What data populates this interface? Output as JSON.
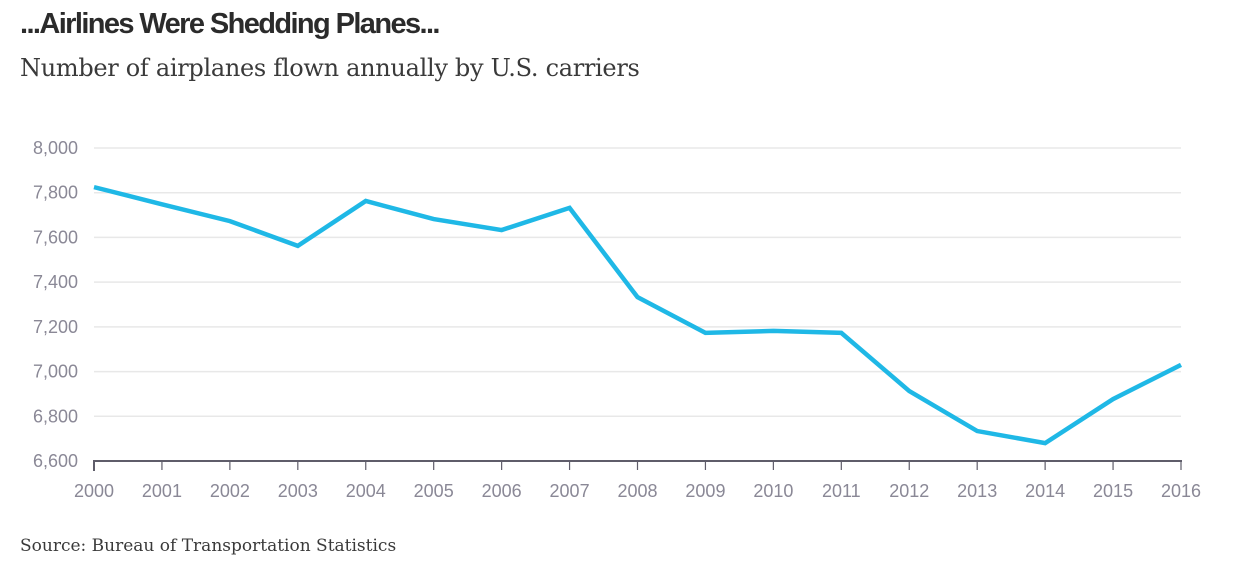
{
  "chart_data": {
    "type": "line",
    "title": "...Airlines Were Shedding Planes...",
    "subtitle": "Number of airplanes flown annually by U.S. carriers",
    "source": "Source: Bureau of Transportation Statistics",
    "xlabel": "",
    "ylabel": "",
    "x": [
      2000,
      2001,
      2002,
      2003,
      2004,
      2005,
      2006,
      2007,
      2008,
      2009,
      2010,
      2011,
      2012,
      2013,
      2014,
      2015,
      2016
    ],
    "series": [
      {
        "name": "Airplanes flown",
        "color": "#1fb8e6",
        "values": [
          7825,
          7748,
          7673,
          7562,
          7763,
          7682,
          7633,
          7732,
          7333,
          7173,
          7182,
          7173,
          6913,
          6734,
          6680,
          6877,
          7030
        ]
      }
    ],
    "ylim": [
      6600,
      8000
    ],
    "yticks": [
      6600,
      6800,
      7000,
      7200,
      7400,
      7600,
      7800,
      8000
    ],
    "ytick_labels": [
      "6,600",
      "6,800",
      "7,000",
      "7,200",
      "7,400",
      "7,600",
      "7,800",
      "8,000"
    ],
    "xtick_labels": [
      "2000",
      "2001",
      "2002",
      "2003",
      "2004",
      "2005",
      "2006",
      "2007",
      "2008",
      "2009",
      "2010",
      "2011",
      "2012",
      "2013",
      "2014",
      "2015",
      "2016"
    ],
    "grid": true,
    "legend": "none"
  },
  "colors": {
    "line": "#1fb8e6",
    "grid": "#e8e8e8",
    "axis": "#5f5d6a",
    "tick_text": "#8a8896"
  }
}
